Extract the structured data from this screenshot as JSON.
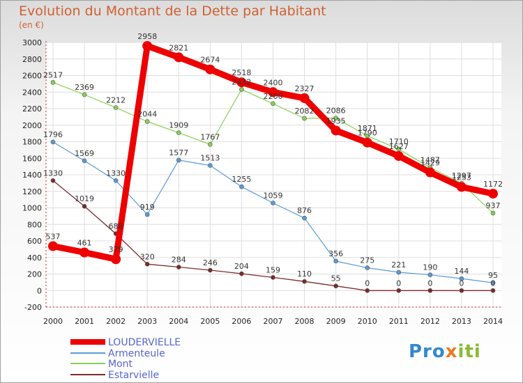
{
  "chart_data": {
    "type": "line",
    "title": "Evolution du Montant de la Dette par Habitant",
    "subtitle": "(en €)",
    "xlabel": "",
    "ylabel": "",
    "x": [
      "2000",
      "2001",
      "2002",
      "2003",
      "2004",
      "2005",
      "2006",
      "2007",
      "2008",
      "2009",
      "2010",
      "2011",
      "2012",
      "2013",
      "2014"
    ],
    "ylim": [
      -200,
      3000
    ],
    "yticks": [
      -200,
      0,
      200,
      400,
      600,
      800,
      1000,
      1200,
      1400,
      1600,
      1800,
      2000,
      2200,
      2400,
      2600,
      2800,
      3000
    ],
    "grid": true,
    "legend_position": "bottom-left",
    "series": [
      {
        "name": "LOUDERVIELLE",
        "color": "#ee0000",
        "values": [
          537,
          461,
          379,
          2958,
          2821,
          2674,
          2518,
          2400,
          2327,
          1935,
          1790,
          1627,
          1429,
          1253,
          1172
        ]
      },
      {
        "name": "Armenteule",
        "color": "#5a9bd5",
        "values": [
          1796,
          1569,
          1330,
          919,
          1577,
          1513,
          1255,
          1059,
          876,
          356,
          275,
          221,
          190,
          144,
          95
        ]
      },
      {
        "name": "Mont",
        "color": "#88d055",
        "values": [
          2517,
          2369,
          2212,
          2044,
          1909,
          1767,
          2432,
          2260,
          2082,
          2086,
          1871,
          1710,
          1487,
          1297,
          937
        ]
      },
      {
        "name": "Estarvielle",
        "color": "#7a2a2a",
        "values": [
          1330,
          1019,
          688,
          320,
          284,
          246,
          204,
          159,
          110,
          55,
          0,
          0,
          0,
          0,
          0
        ]
      }
    ]
  },
  "branding": {
    "logo_parts": [
      "Pro",
      "x",
      "iti"
    ]
  }
}
